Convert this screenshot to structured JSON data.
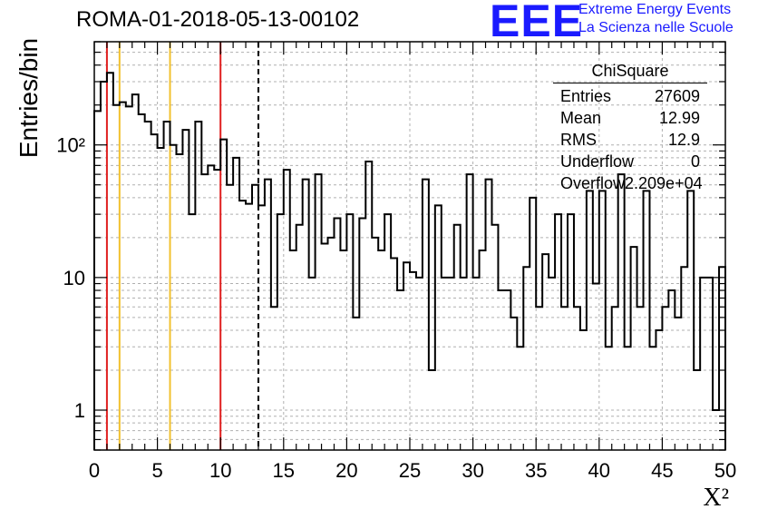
{
  "title": "ROMA-01-2018-05-13-00102",
  "logo": {
    "mark": "EEE",
    "line1": "Extreme Energy Events",
    "line2": "La Scienza nelle Scuole",
    "color": "#1a1aff"
  },
  "stats": {
    "title": "ChiSquare",
    "rows": [
      {
        "label": "Entries",
        "value": "27609"
      },
      {
        "label": "Mean",
        "value": "12.99"
      },
      {
        "label": "RMS",
        "value": "12.9"
      },
      {
        "label": "Underflow",
        "value": "0"
      },
      {
        "label": "Overflow",
        "value": "2.209e+04"
      }
    ]
  },
  "chart_data": {
    "type": "bar",
    "style": "step-histogram",
    "xlabel": "X²",
    "ylabel": "Entries/bin",
    "xlim": [
      0,
      50
    ],
    "ylim": [
      0.5,
      600
    ],
    "yscale": "log",
    "grid": true,
    "bin_width": 0.5,
    "xticks": [
      "0",
      "5",
      "10",
      "15",
      "20",
      "25",
      "30",
      "35",
      "40",
      "45",
      "50"
    ],
    "yticks": [
      {
        "value": 1,
        "label": "1"
      },
      {
        "value": 10,
        "label": "10"
      },
      {
        "value": 100,
        "label": "10²"
      }
    ],
    "values": [
      180,
      300,
      350,
      200,
      210,
      195,
      240,
      170,
      150,
      120,
      95,
      150,
      100,
      85,
      130,
      30,
      150,
      60,
      70,
      65,
      110,
      50,
      80,
      38,
      36,
      50,
      35,
      55,
      6,
      30,
      65,
      16,
      25,
      55,
      10,
      60,
      18,
      20,
      28,
      16,
      30,
      5,
      28,
      75,
      20,
      16,
      30,
      14,
      8,
      13,
      11,
      10,
      55,
      2,
      35,
      10,
      10,
      25,
      10,
      60,
      10,
      16,
      55,
      25,
      8,
      8,
      5,
      3,
      12,
      40,
      6,
      15,
      10,
      30,
      6,
      30,
      6,
      4,
      45,
      9,
      45,
      3,
      6,
      60,
      3,
      17,
      6,
      45,
      3,
      4,
      6,
      8,
      5,
      12,
      45,
      2,
      10,
      10,
      1,
      12
    ],
    "vertical_lines": [
      {
        "x": 1,
        "color": "#e02020",
        "style": "solid"
      },
      {
        "x": 2,
        "color": "#f2c12e",
        "style": "solid"
      },
      {
        "x": 6,
        "color": "#f2c12e",
        "style": "solid"
      },
      {
        "x": 10,
        "color": "#e02020",
        "style": "solid"
      },
      {
        "x": 13,
        "color": "#000000",
        "style": "dashed"
      }
    ]
  }
}
